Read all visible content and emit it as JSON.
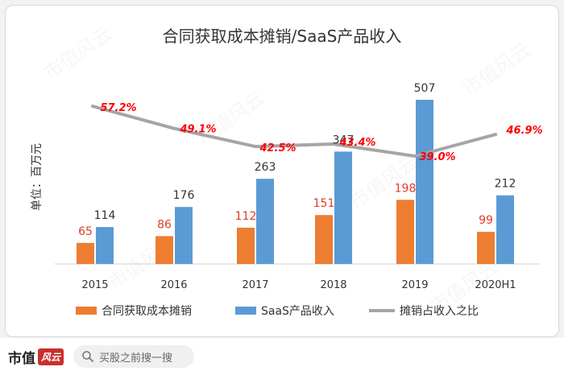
{
  "chart_data": {
    "type": "bar",
    "title": "合同获取成本摊销/SaaS产品收入",
    "ylabel": "单位：百万元",
    "ylim": [
      0,
      560
    ],
    "categories": [
      "2015",
      "2016",
      "2017",
      "2018",
      "2019",
      "2020H1"
    ],
    "series": [
      {
        "name": "合同获取成本摊销",
        "type": "bar",
        "color": "#ed7d31",
        "values": [
          65,
          86,
          112,
          151,
          198,
          99
        ],
        "labels": [
          "65",
          "86",
          "112",
          "151",
          "198",
          "99"
        ]
      },
      {
        "name": "SaaS产品收入",
        "type": "bar",
        "color": "#5b9bd5",
        "values": [
          114,
          176,
          263,
          347,
          507,
          212
        ],
        "labels": [
          "114",
          "176",
          "263",
          "347",
          "507",
          "212"
        ]
      },
      {
        "name": "摊销占收入之比",
        "type": "line",
        "color": "#a5a5a5",
        "values": [
          57.2,
          49.1,
          42.5,
          43.4,
          39.0,
          46.9
        ],
        "labels": [
          "57.2%",
          "49.1%",
          "42.5%",
          "43.4%",
          "39.0%",
          "46.9%"
        ]
      }
    ],
    "ratio_range": [
      25,
      65
    ]
  },
  "footer": {
    "brand": "市值",
    "brand_badge": "风云",
    "search_placeholder": "买股之前搜一搜",
    "accent": "#c9302c"
  },
  "watermark": "市值风云"
}
